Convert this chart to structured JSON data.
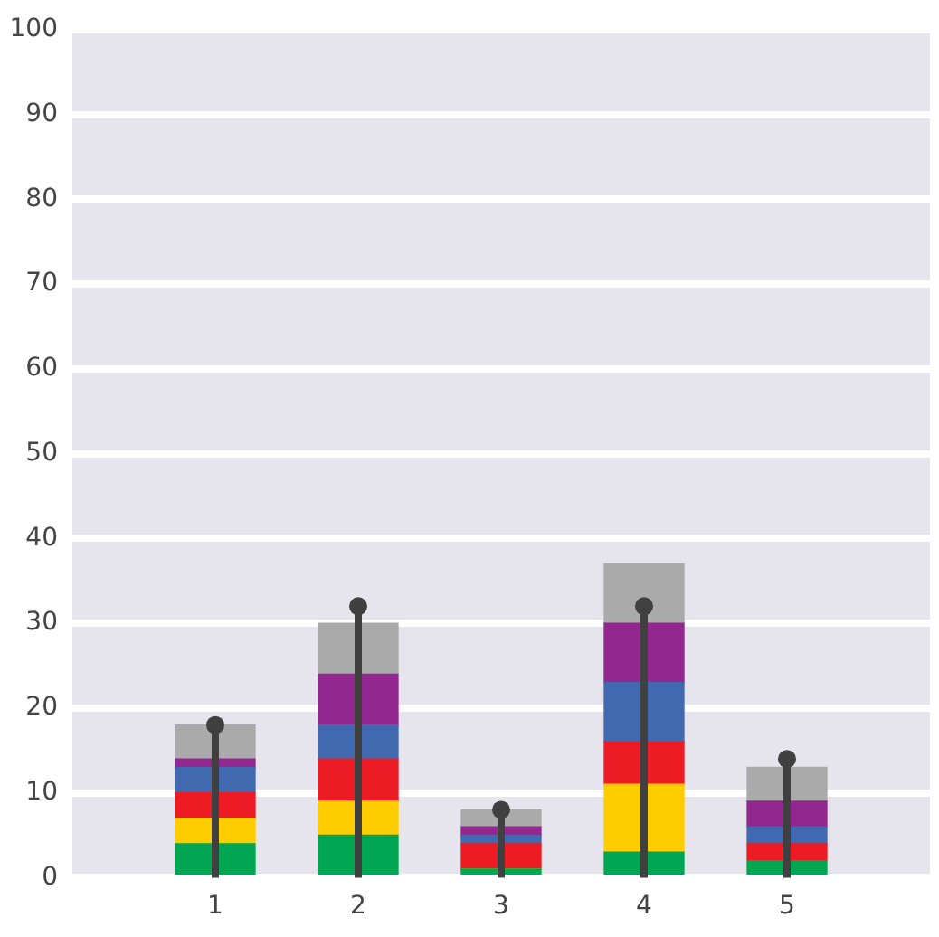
{
  "chart_data": {
    "type": "bar",
    "stacked": true,
    "x": [
      1,
      2,
      3,
      4,
      5
    ],
    "xlim": [
      0,
      6
    ],
    "xticks": [
      1,
      2,
      3,
      4,
      5
    ],
    "ylim": [
      0,
      100
    ],
    "yticks": [
      0,
      10,
      20,
      30,
      40,
      50,
      60,
      70,
      80,
      90,
      100
    ],
    "grid": "y",
    "legend": false,
    "series": [
      {
        "color": "#00a651",
        "values": [
          4,
          5,
          1,
          3,
          2
        ]
      },
      {
        "color": "#ffcc00",
        "values": [
          3,
          4,
          0,
          8,
          0
        ]
      },
      {
        "color": "#ed1c24",
        "values": [
          3,
          5,
          3,
          5,
          2
        ]
      },
      {
        "color": "#4169b0",
        "values": [
          3,
          4,
          1,
          7,
          2
        ]
      },
      {
        "color": "#92278f",
        "values": [
          1,
          6,
          1,
          7,
          3
        ]
      },
      {
        "color": "#aaaaaa",
        "values": [
          4,
          6,
          2,
          7,
          4
        ]
      },
      {
        "type": "lollipop",
        "color": "#404040",
        "values": [
          18,
          32,
          8,
          32,
          14
        ]
      }
    ]
  }
}
